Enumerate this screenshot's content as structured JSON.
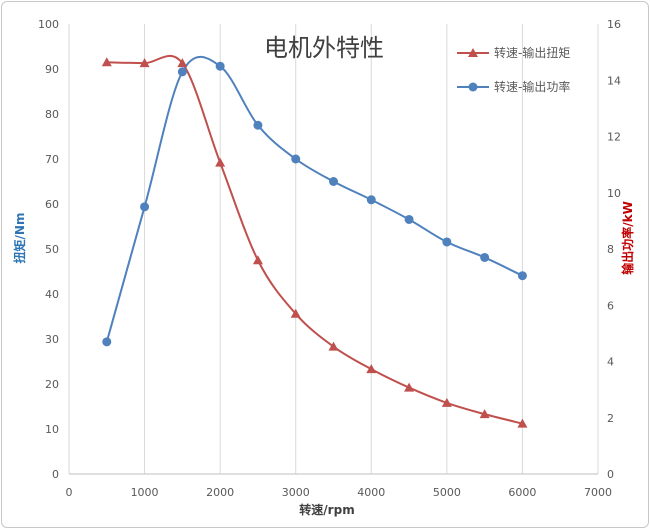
{
  "chart_data": {
    "type": "line",
    "title": "电机外特性",
    "xlabel": "转速/rpm",
    "ylabel_left": "扭矩/Nm",
    "ylabel_right": "输出功率/kW",
    "xlim": [
      0,
      7000
    ],
    "x_ticks": [
      0,
      1000,
      2000,
      3000,
      4000,
      5000,
      6000,
      7000
    ],
    "ylim_left": [
      0,
      100
    ],
    "y_ticks_left": [
      0,
      10,
      20,
      30,
      40,
      50,
      60,
      70,
      80,
      90,
      100
    ],
    "ylim_right": [
      0,
      16
    ],
    "y_ticks_right": [
      0,
      2,
      4,
      6,
      8,
      10,
      12,
      14,
      16
    ],
    "grid": "vertical",
    "legend_position": "top-right",
    "series": [
      {
        "name": "转速-输出扭矩",
        "axis": "left",
        "marker": "triangle",
        "color": "#c0504d",
        "smooth": true,
        "x": [
          500,
          1000,
          1500,
          2000,
          2500,
          3000,
          3500,
          4000,
          4500,
          5000,
          5500,
          6000
        ],
        "y": [
          91.5,
          91.3,
          91.3,
          69.2,
          47.5,
          35.6,
          28.3,
          23.3,
          19.2,
          15.8,
          13.3,
          11.2
        ]
      },
      {
        "name": "转速-输出功率",
        "axis": "right",
        "marker": "circle",
        "color": "#4f81bd",
        "smooth": true,
        "x": [
          500,
          1000,
          1500,
          2000,
          2500,
          3000,
          3500,
          4000,
          4500,
          5000,
          5500,
          6000
        ],
        "y": [
          4.7,
          9.5,
          14.3,
          14.5,
          12.4,
          11.2,
          10.4,
          9.75,
          9.05,
          8.25,
          7.7,
          7.05
        ]
      }
    ]
  }
}
